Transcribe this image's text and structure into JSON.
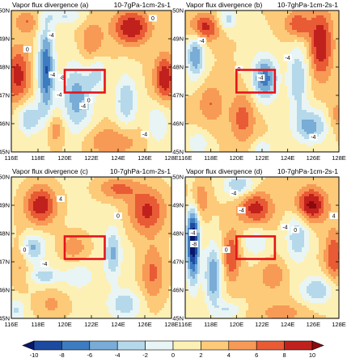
{
  "chart_data": [
    {
      "type": "heatmap",
      "title_left": "Vapor flux divergence (a)",
      "title_right": "10-7gPa-1cm-2s-1",
      "x_ticks": [
        "116E",
        "118E",
        "120E",
        "122E",
        "124E",
        "126E",
        "128E"
      ],
      "y_ticks": [
        "50N",
        "49N",
        "48N",
        "47N",
        "46N",
        "45N"
      ],
      "xlim": [
        116,
        128
      ],
      "ylim": [
        45,
        50
      ],
      "box": {
        "lon": [
          120,
          123
        ],
        "lat": [
          47.1,
          47.9
        ]
      },
      "contour_labels": [
        "-4",
        "0",
        "-4",
        "-8",
        "-4",
        "0",
        "-4",
        "0",
        "-4"
      ]
    },
    {
      "type": "heatmap",
      "title_left": "Vapor flux divergence (b)",
      "title_right": "10-7ghPa-1cm-2s-1",
      "x_ticks": [
        "116E",
        "118E",
        "120E",
        "122E",
        "124E",
        "126E",
        "128E"
      ],
      "y_ticks": [
        "50N",
        "49N",
        "48N",
        "47N",
        "46N",
        "45N"
      ],
      "xlim": [
        116,
        128
      ],
      "ylim": [
        45,
        50
      ],
      "box": {
        "lon": [
          120,
          123
        ],
        "lat": [
          47.1,
          47.9
        ]
      },
      "contour_labels": [
        "-4",
        "-4",
        "0",
        "-4",
        "-4"
      ]
    },
    {
      "type": "heatmap",
      "title_left": "Vapor flux divergence (c)",
      "title_right": "10-7ghPa-1cm-2s-1",
      "x_ticks": [
        "116E",
        "118E",
        "120E",
        "122E",
        "124E",
        "126E",
        "128E"
      ],
      "y_ticks": [
        "50N",
        "49N",
        "48N",
        "47N",
        "46N",
        "45N"
      ],
      "xlim": [
        116,
        128
      ],
      "ylim": [
        45,
        50
      ],
      "box": {
        "lon": [
          120,
          123
        ],
        "lat": [
          47.1,
          47.9
        ]
      },
      "contour_labels": [
        "4",
        "0",
        "-4",
        "0"
      ]
    },
    {
      "type": "heatmap",
      "title_left": "Vapor flux divergence (d)",
      "title_right": "10-7ghPa-1cm-2s-1",
      "x_ticks": [
        "116E",
        "118E",
        "120E",
        "122E",
        "124E",
        "126E",
        "128E"
      ],
      "y_ticks": [
        "50N",
        "49N",
        "48N",
        "47N",
        "46N",
        "45N"
      ],
      "xlim": [
        116,
        128
      ],
      "ylim": [
        45,
        50
      ],
      "box": {
        "lon": [
          120,
          123
        ],
        "lat": [
          47.1,
          47.9
        ]
      },
      "contour_labels": [
        "-4",
        "-4",
        "-4",
        "0",
        "-4",
        "-8",
        "0",
        "4"
      ]
    }
  ],
  "colorbar": {
    "levels": [
      -10,
      -8,
      -6,
      -4,
      -2,
      0,
      2,
      4,
      6,
      8,
      10
    ],
    "level_labels": [
      "-10",
      "-8",
      "-6",
      "-4",
      "-2",
      "0",
      "2",
      "4",
      "6",
      "8",
      "10"
    ],
    "colors": [
      "#08186b",
      "#1c4aa0",
      "#3d7cc0",
      "#79acd6",
      "#b5d9ea",
      "#e9f5f4",
      "#fdf0b4",
      "#fcca78",
      "#f79a56",
      "#e95b35",
      "#c1211c",
      "#8c0a0f"
    ]
  }
}
